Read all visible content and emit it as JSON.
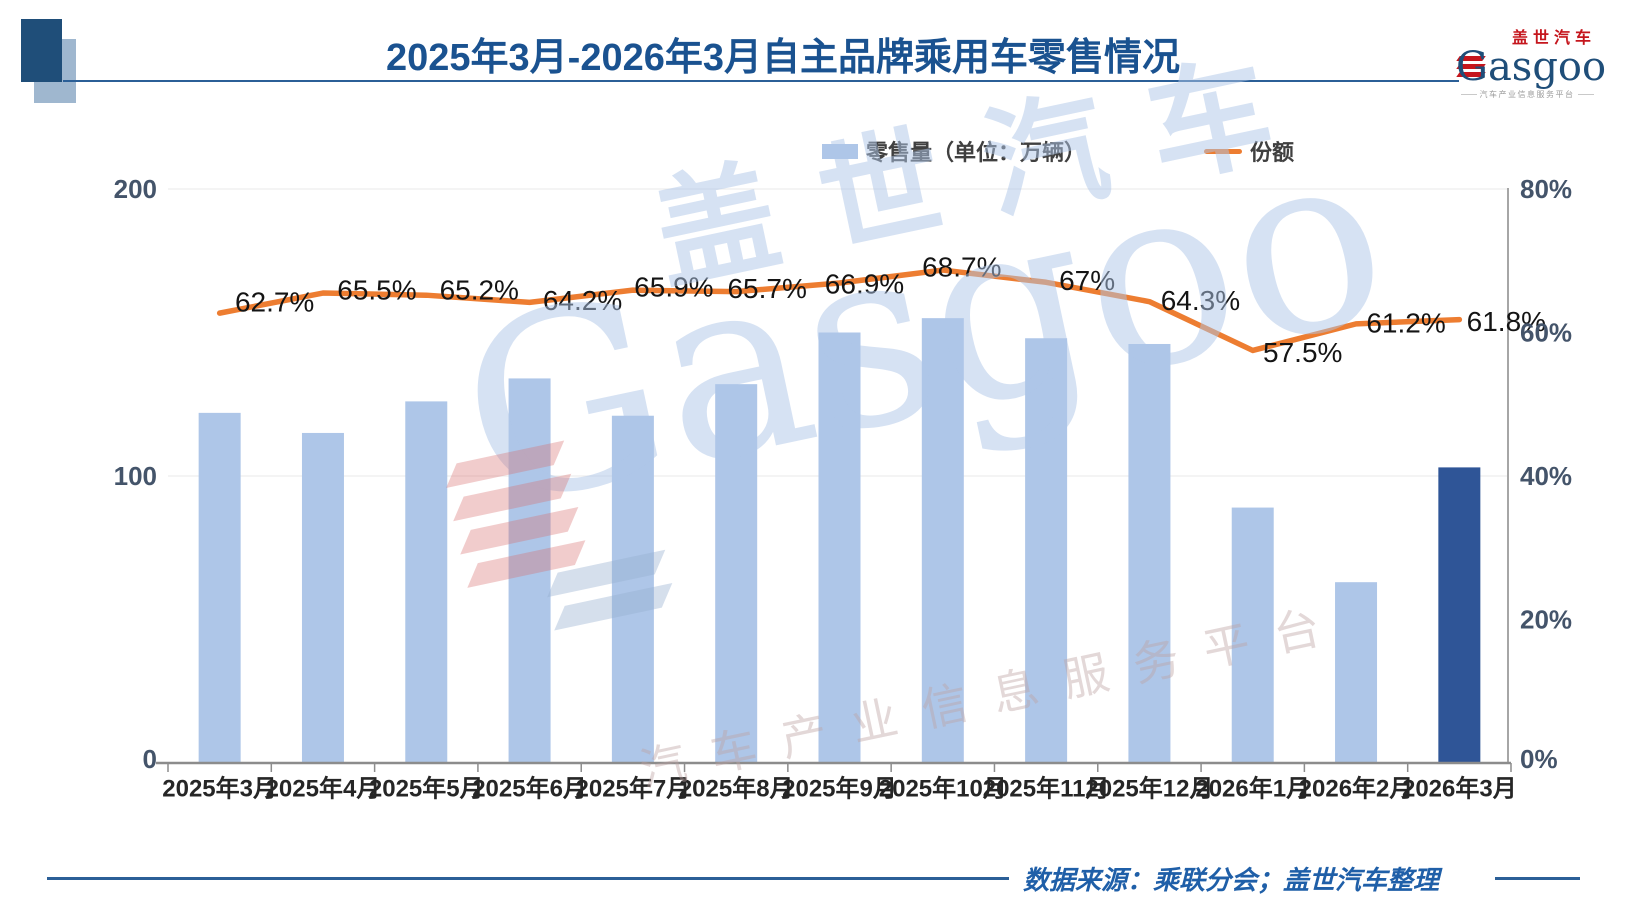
{
  "title": "2025年3月-2026年3月自主品牌乘用车零售情况",
  "logo": {
    "name_cn": "盖世汽车",
    "name_en": "Gasgoo",
    "tagline": "汽车产业信息服务平台"
  },
  "legend": {
    "bar_label": "零售量（单位：万辆）",
    "line_label": "份额"
  },
  "watermark": {
    "text_cn": "盖世汽车",
    "text_en": "Gasgoo",
    "tagline": "汽车产业信息服务平台"
  },
  "footer": {
    "source": "数据来源：乘联分会；盖世汽车整理"
  },
  "colors": {
    "bar_light": "#AEC6E8",
    "bar_highlight": "#2F5597",
    "line_orange": "#ED7D31",
    "title_blue": "#1A5290",
    "axis_label": "#44546A",
    "footer_blue": "#1F5FA8",
    "logo_red": "#C5161D",
    "logo_blue": "#1F4E79"
  },
  "chart_data": {
    "type": "bar+line",
    "categories": [
      "2025年3月",
      "2025年4月",
      "2025年5月",
      "2025年6月",
      "2025年7月",
      "2025年8月",
      "2025年9月",
      "2025年10月",
      "2025年11月",
      "2025年12月",
      "2026年1月",
      "2026年2月",
      "2026年3月"
    ],
    "series": [
      {
        "name": "零售量（单位：万辆）",
        "type": "bar",
        "axis": "left",
        "values": [
          122,
          115,
          126,
          134,
          121,
          132,
          150,
          155,
          148,
          146,
          89,
          63,
          103
        ],
        "highlight_last_bar": true
      },
      {
        "name": "份额",
        "type": "line",
        "axis": "right",
        "values": [
          62.7,
          65.5,
          65.2,
          64.2,
          65.9,
          65.7,
          66.9,
          68.7,
          67,
          64.3,
          57.5,
          61.2,
          61.8
        ],
        "labels": [
          "62.7%",
          "65.5%",
          "65.2%",
          "64.2%",
          "65.9%",
          "65.7%",
          "66.9%",
          "68.7%",
          "67%",
          "64.3%",
          "57.5%",
          "61.2%",
          "61.8%"
        ]
      }
    ],
    "left_axis": {
      "tick_labels": [
        "0",
        "100",
        "200"
      ],
      "tick_values": [
        0,
        100,
        200
      ],
      "range": [
        0,
        200
      ]
    },
    "right_axis": {
      "tick_labels": [
        "0%",
        "20%",
        "40%",
        "60%",
        "80%"
      ],
      "tick_values": [
        0,
        20,
        40,
        60,
        80
      ],
      "range": [
        0,
        80
      ]
    },
    "grid": "horizontal gridlines only at left-axis values 100 and 200",
    "legend_position": "top-center"
  }
}
